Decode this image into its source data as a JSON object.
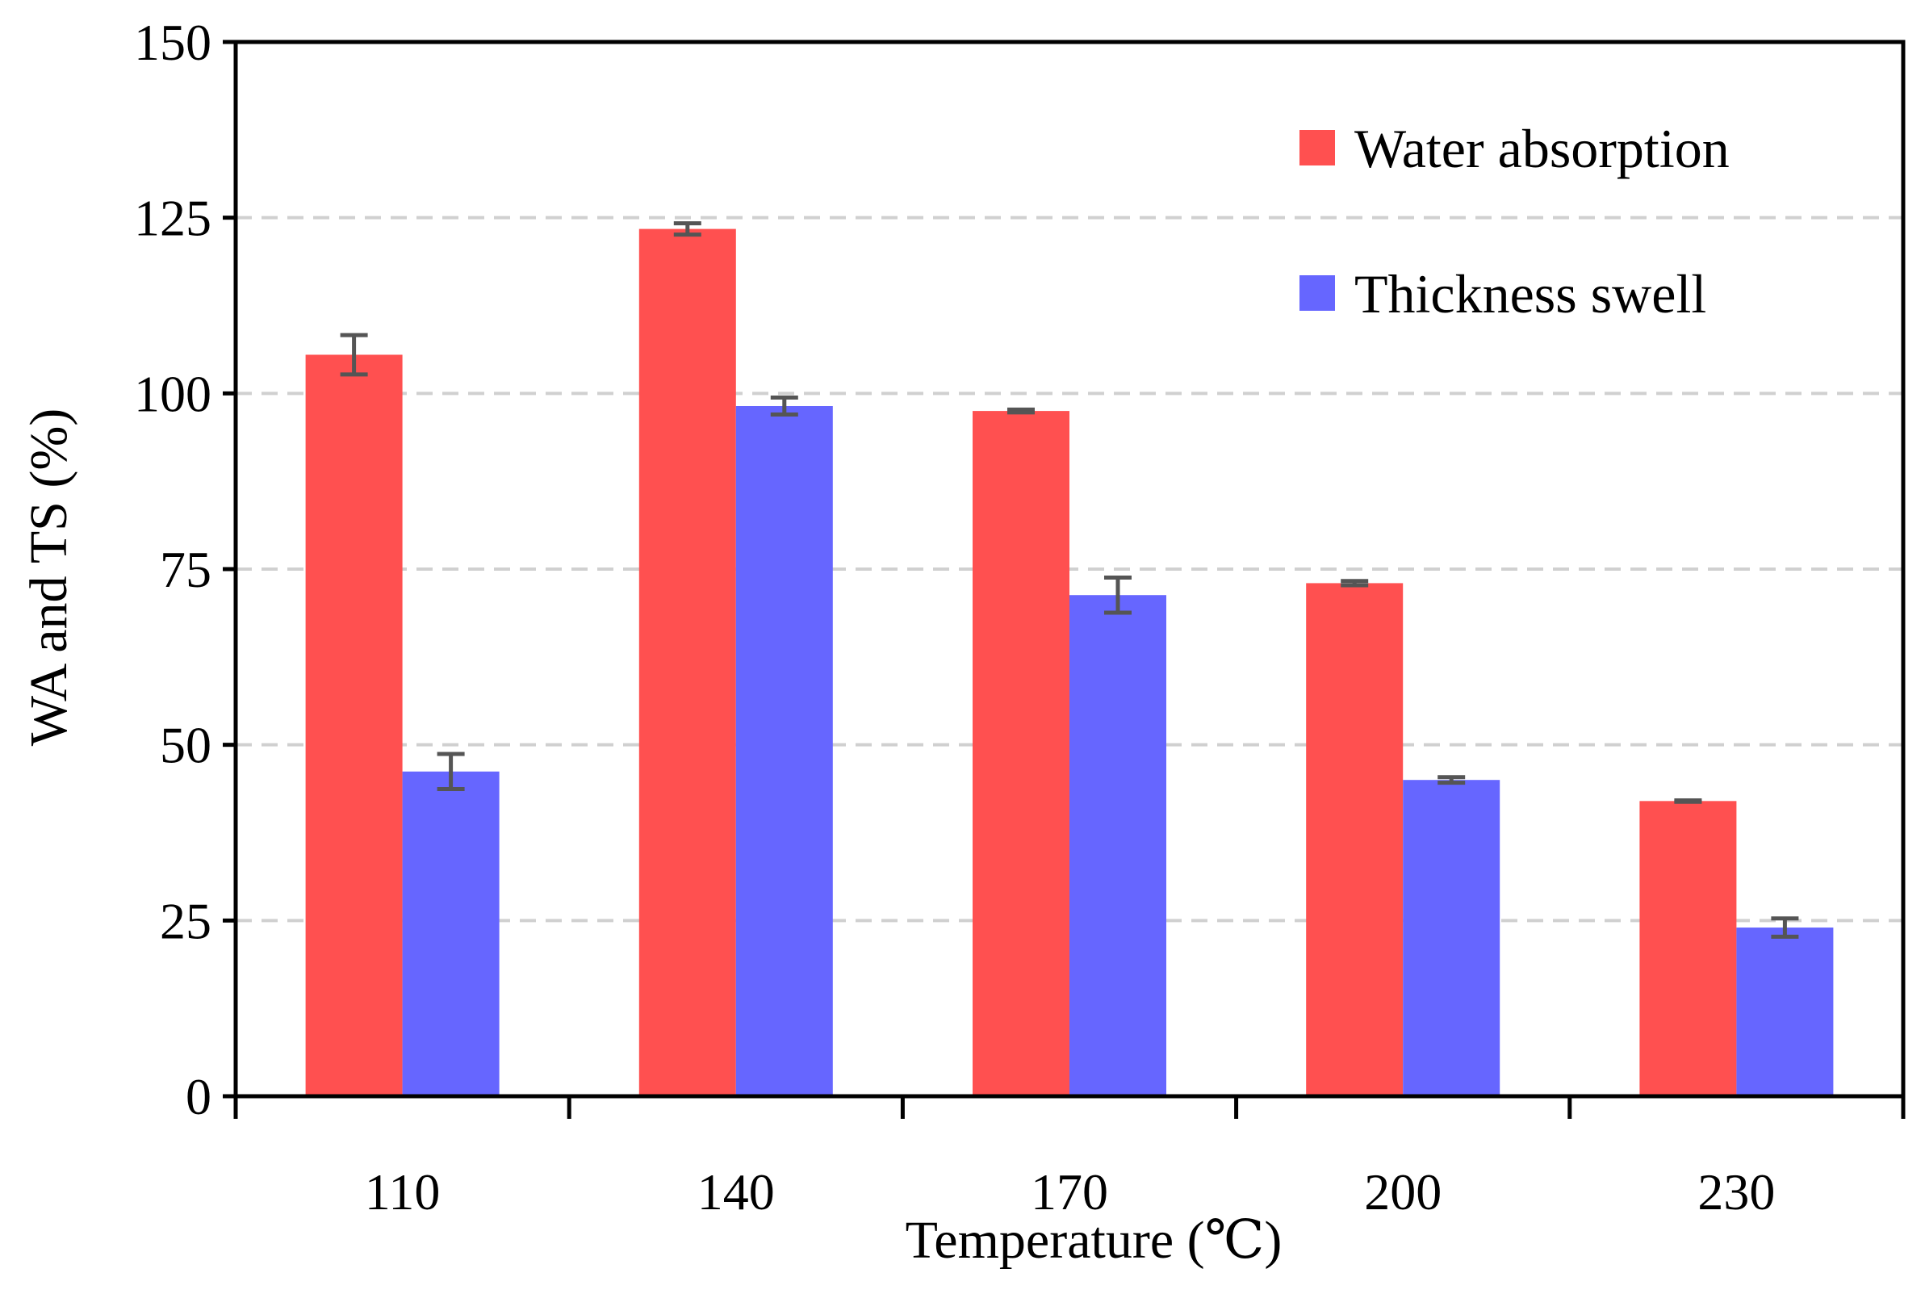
{
  "chart_data": {
    "type": "bar",
    "title": "",
    "xlabel": "Temperature (℃)",
    "ylabel": "WA and TS (%)",
    "categories": [
      "110",
      "140",
      "170",
      "200",
      "230"
    ],
    "ylim": [
      0,
      150
    ],
    "yticks": [
      0,
      25,
      50,
      75,
      100,
      125,
      150
    ],
    "grid": "horizontal dashed",
    "legend_position": "top-right",
    "series": [
      {
        "name": "Water absorption",
        "color": "#ff5050",
        "values": [
          105.5,
          123.4,
          97.5,
          73,
          42
        ],
        "errors": [
          2.8,
          0.8,
          0.2,
          0.3,
          0.1
        ]
      },
      {
        "name": "Thickness swell",
        "color": "#6666ff",
        "values": [
          46.2,
          98.2,
          71.3,
          45,
          24
        ],
        "errors": [
          2.5,
          1.2,
          2.5,
          0.4,
          1.3
        ]
      }
    ]
  }
}
